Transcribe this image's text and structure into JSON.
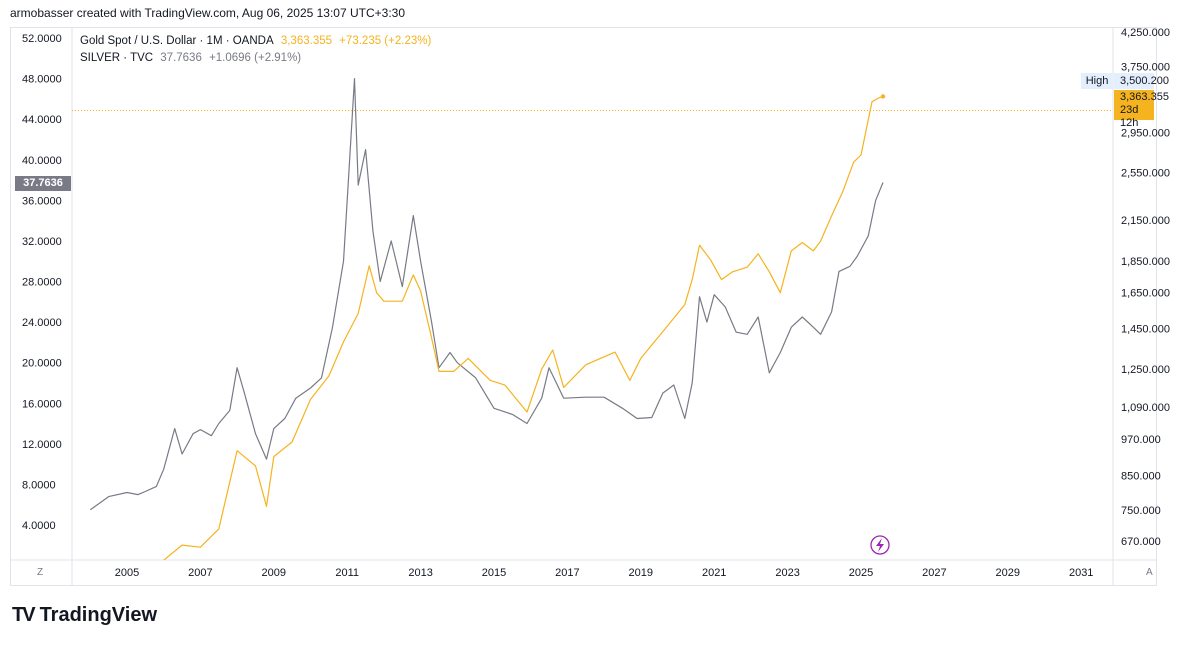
{
  "header": {
    "attribution": "armobasser created with TradingView.com, Aug 06, 2025 13:07 UTC+3:30"
  },
  "legend": {
    "gold": {
      "symbol": "Gold Spot / U.S. Dollar · 1M · OANDA",
      "price": "3,363.355",
      "change": "+73.235 (+2.23%)"
    },
    "silver": {
      "symbol": "SILVER · TVC",
      "price": "37.7636",
      "change": "+1.0696 (+2.91%)"
    }
  },
  "colors": {
    "gold": "#f5b31f",
    "silver": "#787b86",
    "axis": "#131722"
  },
  "tags": {
    "silver_price": "37.7636",
    "high_label": "High",
    "high_value": "3,500.200",
    "gold_price": "3,363.355",
    "gold_countdown": "23d 12h"
  },
  "corners": {
    "left": "Z",
    "right": "A"
  },
  "icons": {
    "event": "lightning-icon"
  },
  "brand": {
    "logo": "TV",
    "name": "TradingView"
  },
  "chart_data": {
    "type": "line",
    "x_ticks": [
      "2005",
      "2007",
      "2009",
      "2011",
      "2013",
      "2015",
      "2017",
      "2019",
      "2021",
      "2023",
      "2025",
      "2027",
      "2029",
      "2031"
    ],
    "left_axis": {
      "ticks": [
        "4.0000",
        "8.0000",
        "12.0000",
        "16.0000",
        "20.0000",
        "24.0000",
        "28.0000",
        "32.0000",
        "36.0000",
        "40.0000",
        "44.0000",
        "48.0000",
        "52.0000"
      ],
      "range": [
        0,
        54
      ]
    },
    "right_axis": {
      "ticks": [
        "670.000",
        "750.000",
        "850.000",
        "970.000",
        "1,090.000",
        "1,250.000",
        "1,450.000",
        "1,650.000",
        "1,850.000",
        "2,150.000",
        "2,550.000",
        "2,950.000",
        "3,750.000",
        "4,250.000"
      ],
      "scale": "log"
    },
    "series": [
      {
        "name": "SILVER · TVC",
        "axis": "left",
        "x": [
          2004.0,
          2004.5,
          2005.0,
          2005.3,
          2005.5,
          2005.8,
          2006.0,
          2006.3,
          2006.5,
          2006.8,
          2007.0,
          2007.3,
          2007.5,
          2007.8,
          2008.0,
          2008.2,
          2008.5,
          2008.8,
          2009.0,
          2009.3,
          2009.6,
          2010.0,
          2010.3,
          2010.6,
          2010.9,
          2011.0,
          2011.2,
          2011.3,
          2011.5,
          2011.7,
          2011.9,
          2012.2,
          2012.5,
          2012.8,
          2013.0,
          2013.3,
          2013.5,
          2013.8,
          2014.0,
          2014.5,
          2015.0,
          2015.5,
          2015.9,
          2016.3,
          2016.5,
          2016.9,
          2017.5,
          2018.0,
          2018.5,
          2018.9,
          2019.3,
          2019.6,
          2019.9,
          2020.2,
          2020.4,
          2020.6,
          2020.8,
          2021.0,
          2021.3,
          2021.6,
          2021.9,
          2022.2,
          2022.5,
          2022.8,
          2023.1,
          2023.4,
          2023.7,
          2023.9,
          2024.2,
          2024.4,
          2024.7,
          2024.9,
          2025.2,
          2025.4,
          2025.6
        ],
        "y": [
          5.5,
          6.8,
          7.2,
          7.0,
          7.3,
          7.8,
          9.5,
          13.5,
          11.0,
          13.0,
          13.4,
          12.8,
          14.0,
          15.3,
          19.5,
          17.0,
          13.0,
          10.5,
          13.5,
          14.5,
          16.5,
          17.5,
          18.5,
          23.5,
          30.0,
          36.0,
          48.0,
          37.5,
          41.0,
          33.0,
          28.0,
          32.0,
          27.5,
          34.5,
          30.0,
          24.0,
          19.5,
          21.0,
          20.0,
          18.5,
          15.5,
          14.9,
          14.0,
          16.5,
          19.5,
          16.5,
          16.6,
          16.6,
          15.5,
          14.5,
          14.6,
          17.0,
          17.8,
          14.5,
          18.0,
          26.5,
          24.0,
          26.7,
          25.5,
          23.0,
          22.8,
          24.5,
          19.0,
          21.0,
          23.5,
          24.5,
          23.5,
          22.8,
          25.0,
          29.0,
          29.5,
          30.5,
          32.5,
          36.0,
          37.76
        ]
      },
      {
        "name": "Gold Spot / U.S. Dollar · 1M · OANDA",
        "axis": "right",
        "x": [
          2006.0,
          2006.5,
          2007.0,
          2007.5,
          2008.0,
          2008.5,
          2008.8,
          2009.0,
          2009.5,
          2010.0,
          2010.5,
          2010.9,
          2011.3,
          2011.6,
          2011.8,
          2012.0,
          2012.5,
          2012.8,
          2013.0,
          2013.3,
          2013.5,
          2013.9,
          2014.3,
          2014.9,
          2015.3,
          2015.9,
          2016.3,
          2016.6,
          2016.9,
          2017.5,
          2017.9,
          2018.3,
          2018.7,
          2019.0,
          2019.5,
          2019.8,
          2020.2,
          2020.4,
          2020.6,
          2020.9,
          2021.2,
          2021.5,
          2021.9,
          2022.2,
          2022.5,
          2022.8,
          2023.1,
          2023.4,
          2023.7,
          2023.9,
          2024.2,
          2024.5,
          2024.8,
          2025.0,
          2025.3,
          2025.5,
          2025.6
        ],
        "y": [
          625,
          660,
          655,
          700,
          930,
          880,
          760,
          910,
          960,
          1120,
          1220,
          1380,
          1530,
          1820,
          1650,
          1600,
          1600,
          1760,
          1660,
          1400,
          1240,
          1240,
          1300,
          1200,
          1180,
          1070,
          1250,
          1340,
          1170,
          1270,
          1300,
          1330,
          1200,
          1300,
          1410,
          1480,
          1580,
          1730,
          1960,
          1860,
          1730,
          1780,
          1810,
          1900,
          1780,
          1650,
          1920,
          1980,
          1920,
          1990,
          2180,
          2380,
          2650,
          2720,
          3300,
          3350,
          3363.355
        ]
      }
    ]
  }
}
